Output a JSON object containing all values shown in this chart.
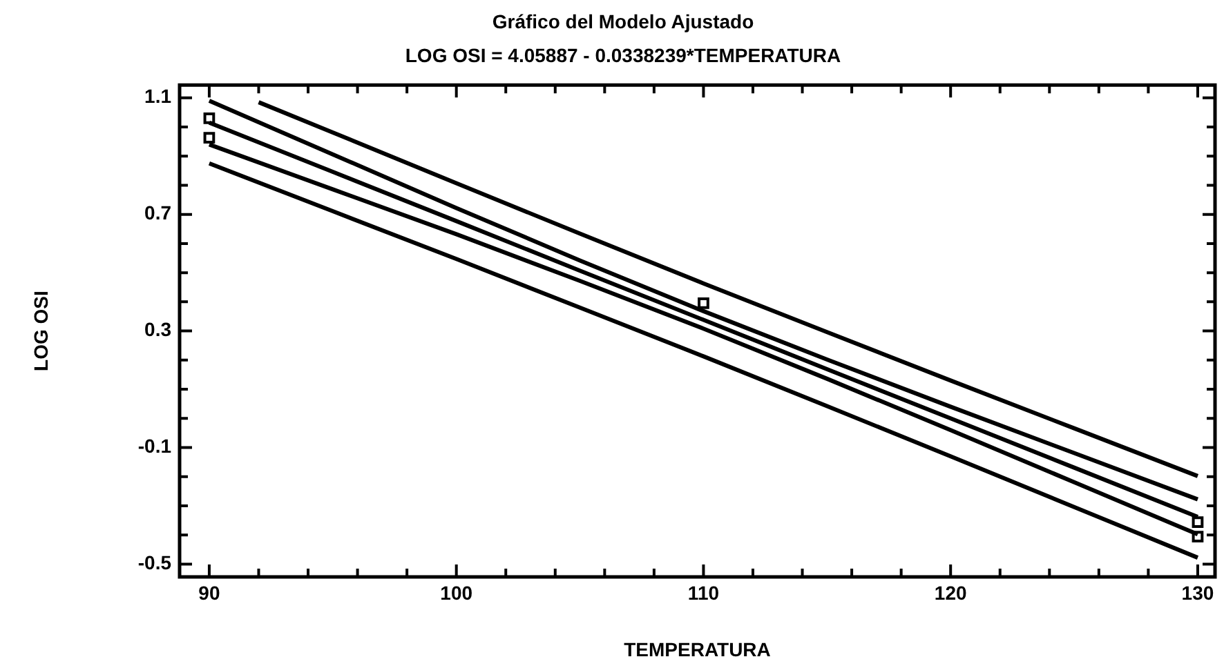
{
  "chart_data": {
    "type": "line",
    "title": "Gráfico del Modelo Ajustado",
    "subtitle": "LOG OSI = 4.05887 - 0.0338239*TEMPERATURA",
    "xlabel": "TEMPERATURA",
    "ylabel": "LOG OSI",
    "xlim": [
      88.8,
      130.7
    ],
    "xticks": [
      90,
      {
        "value": 92,
        "label": null
      },
      {
        "value": 94,
        "label": null
      },
      {
        "value": 96,
        "label": null
      },
      {
        "value": 98,
        "label": null
      },
      100,
      {
        "value": 102,
        "label": null
      },
      {
        "value": 104,
        "label": null
      },
      {
        "value": 106,
        "label": null
      },
      {
        "value": 108,
        "label": null
      },
      110,
      {
        "value": 112,
        "label": null
      },
      {
        "value": 114,
        "label": null
      },
      {
        "value": 116,
        "label": null
      },
      {
        "value": 118,
        "label": null
      },
      120,
      {
        "value": 122,
        "label": null
      },
      {
        "value": 124,
        "label": null
      },
      {
        "value": 126,
        "label": null
      },
      {
        "value": 128,
        "label": null
      },
      130
    ],
    "ylim": [
      -0.544,
      1.144
    ],
    "yticks": [
      {
        "value": -0.5,
        "label": "-0.5"
      },
      {
        "value": -0.4,
        "label": null
      },
      {
        "value": -0.3,
        "label": null
      },
      {
        "value": -0.2,
        "label": null
      },
      {
        "value": -0.1,
        "label": "-0.1"
      },
      {
        "value": 0,
        "label": null
      },
      {
        "value": 0.1,
        "label": null
      },
      {
        "value": 0.2,
        "label": null
      },
      {
        "value": 0.3,
        "label": "0.3"
      },
      {
        "value": 0.4,
        "label": null
      },
      {
        "value": 0.5,
        "label": null
      },
      {
        "value": 0.6,
        "label": null
      },
      {
        "value": 0.7,
        "label": "0.7"
      },
      {
        "value": 0.8,
        "label": null
      },
      {
        "value": 0.9,
        "label": null
      },
      {
        "value": 1.0,
        "label": null
      },
      {
        "value": 1.1,
        "label": "1.1"
      }
    ],
    "grid": false,
    "legend": false,
    "line_style": "solid",
    "series": [
      {
        "type": "line",
        "color": "#000000",
        "marker": "none",
        "x": [
          92,
          95,
          100,
          105,
          110,
          115,
          120,
          125,
          130
        ],
        "values": [
          1.085,
          0.981,
          0.807,
          0.634,
          0.463,
          0.296,
          0.13,
          -0.034,
          -0.198
        ]
      },
      {
        "type": "line",
        "color": "#000000",
        "marker": "none",
        "x": [
          90,
          95,
          100,
          105,
          110,
          115,
          120,
          125,
          130
        ],
        "values": [
          1.09,
          0.906,
          0.722,
          0.542,
          0.368,
          0.202,
          0.04,
          -0.119,
          -0.278
        ]
      },
      {
        "type": "line",
        "color": "#000000",
        "marker": "none",
        "x": [
          90,
          95,
          100,
          105,
          110,
          115,
          120,
          125,
          130
        ],
        "values": [
          1.015,
          0.846,
          0.677,
          0.507,
          0.338,
          0.169,
          0.0,
          -0.169,
          -0.338
        ]
      },
      {
        "type": "line",
        "color": "#000000",
        "marker": "none",
        "x": [
          90,
          95,
          100,
          105,
          110,
          115,
          120,
          125,
          130
        ],
        "values": [
          0.94,
          0.786,
          0.632,
          0.472,
          0.308,
          0.136,
          -0.04,
          -0.219,
          -0.398
        ]
      },
      {
        "type": "line",
        "color": "#000000",
        "marker": "none",
        "x": [
          90,
          95,
          100,
          105,
          110,
          115,
          120,
          125,
          130
        ],
        "values": [
          0.875,
          0.711,
          0.547,
          0.38,
          0.213,
          0.042,
          -0.13,
          -0.304,
          -0.478
        ]
      },
      {
        "type": "scatter",
        "color": "#000000",
        "marker": "square",
        "x": [
          90,
          90,
          110,
          130,
          130
        ],
        "values": [
          1.03,
          0.963,
          0.395,
          -0.356,
          -0.406
        ]
      }
    ]
  }
}
